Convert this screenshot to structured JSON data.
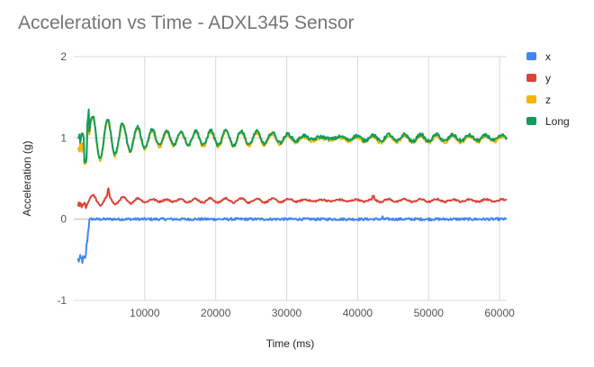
{
  "chart_data": {
    "type": "line",
    "title": "Acceleration vs Time - ADXL345 Sensor",
    "xlabel": "Time (ms)",
    "ylabel": "Acceleration (g)",
    "xlim": [
      0,
      61000
    ],
    "ylim": [
      -1,
      2
    ],
    "x_ticks": [
      10000,
      20000,
      30000,
      40000,
      50000,
      60000
    ],
    "x_tick_labels": [
      "10000",
      "20000",
      "30000",
      "40000",
      "50000",
      "60000"
    ],
    "y_ticks": [
      -1,
      0,
      1,
      2
    ],
    "y_tick_labels": [
      "-1",
      "0",
      "1",
      "2"
    ],
    "grid": true,
    "legend_position": "right",
    "series": [
      {
        "name": "x",
        "color": "#4285F4",
        "kind": "x"
      },
      {
        "name": "y",
        "color": "#DB4437",
        "kind": "y"
      },
      {
        "name": "z",
        "color": "#F4B400",
        "kind": "z"
      },
      {
        "name": "Long",
        "color": "#0F9D58",
        "kind": "long"
      }
    ]
  }
}
